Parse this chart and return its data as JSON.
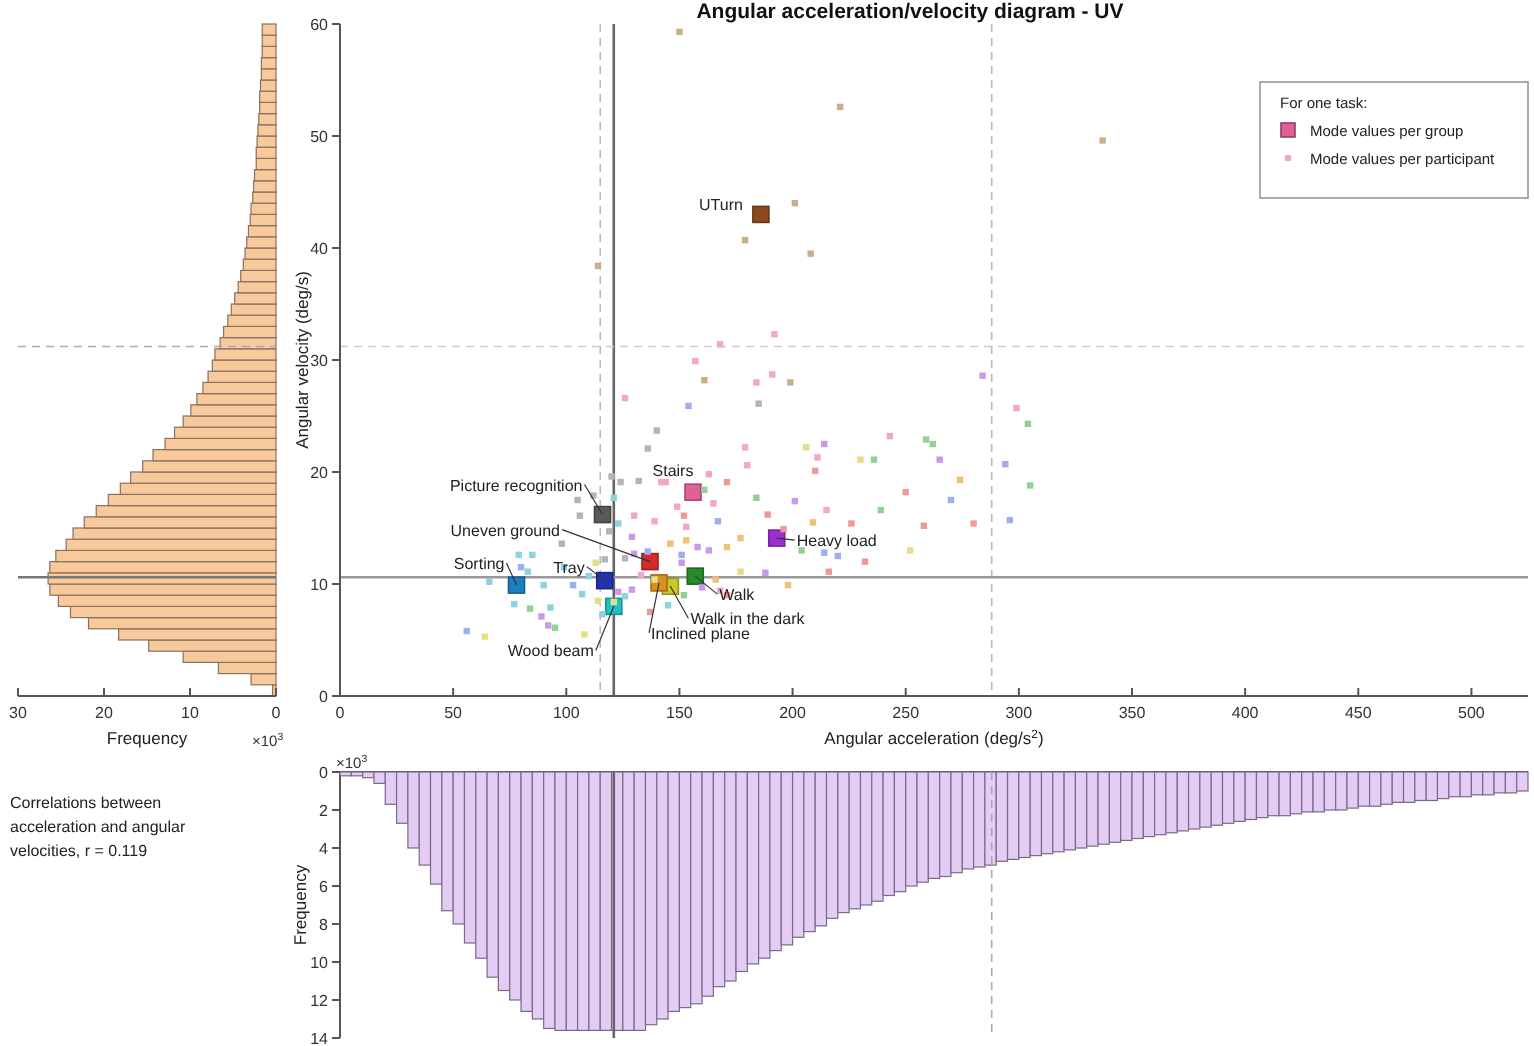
{
  "chart_data": [
    {
      "type": "histogram",
      "orientation": "horizontal",
      "xlabel": "Frequency",
      "annotations": [
        "×10$^{3}$",
        "Correlations between acceleration and angular velocities, r = 0.119"
      ],
      "color": "#f7c99b",
      "bins": [
        0,
        1,
        2,
        3,
        4,
        5,
        6,
        7,
        8,
        9,
        10,
        11,
        12,
        13,
        14,
        15,
        16,
        17,
        18,
        19,
        20,
        21,
        22,
        23,
        24,
        25,
        26,
        27,
        28,
        29,
        30,
        31,
        32,
        33,
        34,
        35,
        36,
        37,
        38,
        39,
        40,
        41,
        42,
        43,
        44,
        45,
        46,
        47,
        48,
        49,
        50,
        51,
        52,
        53,
        54,
        55,
        56,
        57,
        58,
        59,
        60
      ],
      "values": [
        0.4,
        2.9,
        6.7,
        10.8,
        14.8,
        18.3,
        21.8,
        23.9,
        25.3,
        26.3,
        26.5,
        26.3,
        25.6,
        24.4,
        23.6,
        22.3,
        20.9,
        19.5,
        18.1,
        16.9,
        15.5,
        14.3,
        12.9,
        11.8,
        10.8,
        9.9,
        9.2,
        8.5,
        7.9,
        7.4,
        7.1,
        6.5,
        6.1,
        5.6,
        5.2,
        4.8,
        4.4,
        4.1,
        3.8,
        3.6,
        3.4,
        3.2,
        3.0,
        2.9,
        2.7,
        2.6,
        2.5,
        2.3,
        2.3,
        2.2,
        2.1,
        2.0,
        1.9,
        1.9,
        1.8,
        1.7,
        1.7,
        1.6,
        1.6,
        1.6
      ],
      "xlim": [
        30,
        0
      ],
      "xticks": [
        30,
        20,
        10,
        0
      ],
      "ylim": [
        0,
        60
      ],
      "tick_labels": "x",
      "ref_lines": [
        {
          "axis": "y",
          "value": 10.6,
          "line_style": "solid",
          "color": "#777777"
        },
        {
          "axis": "y",
          "value": 31.2,
          "line_style": "dashed",
          "color": "#aaaaaa"
        }
      ]
    },
    {
      "type": "scatter",
      "title": "Angular acceleration/velocity diagram - UV",
      "xlabel": "Angular acceleration (deg/s$^{2}$)",
      "ylabel": "Angular velocity (deg/s)",
      "legend_title": "For one task:",
      "legend": "top right",
      "marker": "square",
      "xlim": [
        0,
        525
      ],
      "xticks": [
        0,
        50,
        100,
        150,
        200,
        250,
        300,
        350,
        400,
        450,
        500
      ],
      "ylim": [
        0,
        60
      ],
      "yticks": [
        0,
        10,
        20,
        30,
        40,
        50,
        60
      ],
      "series": [
        {
          "name": "Mode values per group",
          "color": "#e0609a",
          "x": [
            186,
            156,
            116,
            193,
            137,
            78,
            117,
            157,
            146,
            141,
            121
          ],
          "values": [
            43.0,
            18.2,
            16.2,
            14.1,
            12.0,
            9.9,
            10.3,
            10.7,
            9.8,
            10.1,
            8.0
          ],
          "colors": [
            "#8b4a1c",
            "#e0609a",
            "#5a5a5a",
            "#9b30d0",
            "#d42a2a",
            "#1a80c0",
            "#2233b0",
            "#2a8a2a",
            "#c8c828",
            "#d8901e",
            "#20c0c8"
          ]
        },
        {
          "name": "Mode values per participant",
          "color": "#f2a6c8",
          "x": [
            56,
            64,
            79,
            85,
            80,
            83,
            66,
            90,
            77,
            84,
            93,
            89,
            95,
            92,
            108,
            103,
            99,
            98,
            105,
            106,
            112,
            120,
            124,
            121,
            119,
            123,
            132,
            136,
            140,
            126,
            154,
            157,
            161,
            168,
            184,
            185,
            192,
            191,
            199,
            130,
            139,
            142,
            144,
            149,
            152,
            153,
            161,
            165,
            163,
            171,
            167,
            180,
            179,
            184,
            189,
            196,
            206,
            214,
            211,
            210,
            201,
            209,
            204,
            214,
            177,
            171,
            163,
            158,
            153,
            146,
            129,
            130,
            136,
            151,
            151,
            139,
            133,
            129,
            123,
            121,
            126,
            137,
            145,
            152,
            160,
            166,
            168,
            171,
            177,
            188,
            198,
            216,
            110,
            107,
            114,
            116,
            113,
            117,
            126,
            236,
            243,
            250,
            258,
            259,
            262,
            265,
            270,
            274,
            280,
            284,
            299,
            304,
            294,
            296,
            305,
            226,
            239,
            232,
            220,
            230,
            252,
            215,
            150,
            221,
            201,
            179,
            208,
            114,
            337
          ],
          "values": [
            5.8,
            5.3,
            12.6,
            12.6,
            11.5,
            11.1,
            10.2,
            9.9,
            8.2,
            7.8,
            7.9,
            7.1,
            6.1,
            6.3,
            5.5,
            9.9,
            11.5,
            13.6,
            17.5,
            16.1,
            17.9,
            19.6,
            19.1,
            17.7,
            14.7,
            15.4,
            19.2,
            22.1,
            23.7,
            26.6,
            25.9,
            29.9,
            28.2,
            31.4,
            28.0,
            26.1,
            32.3,
            28.7,
            28.0,
            16.1,
            15.6,
            19.1,
            19.1,
            16.9,
            16.1,
            15.1,
            18.4,
            17.2,
            19.8,
            19.1,
            15.6,
            20.6,
            22.2,
            17.7,
            16.2,
            14.9,
            22.2,
            22.5,
            21.3,
            20.1,
            17.4,
            15.5,
            13.0,
            12.8,
            14.1,
            13.3,
            13.0,
            13.3,
            13.9,
            13.6,
            14.2,
            12.7,
            12.9,
            12.6,
            11.9,
            10.4,
            10.8,
            9.5,
            9.3,
            8.4,
            8.9,
            7.5,
            8.1,
            9.0,
            9.7,
            10.4,
            9.4,
            9.0,
            11.1,
            11.0,
            9.9,
            11.1,
            10.7,
            9.1,
            8.5,
            7.3,
            11.9,
            12.2,
            12.3,
            21.1,
            23.2,
            18.2,
            15.2,
            22.9,
            22.5,
            21.1,
            17.5,
            19.3,
            15.4,
            28.6,
            25.7,
            24.3,
            20.7,
            15.7,
            18.8,
            15.4,
            16.6,
            12.0,
            12.5,
            21.1,
            13.0,
            16.6,
            59.3,
            52.6,
            44.0,
            40.7,
            39.5,
            38.4,
            49.6
          ],
          "colors": [
            "#a0aef0",
            "#e4de88",
            "#8dd3df",
            "#8dd3df",
            "#a0aef0",
            "#8dd3df",
            "#8dd3df",
            "#8dd3df",
            "#8dd3df",
            "#93d093",
            "#8dd3df",
            "#c89ae8",
            "#93d093",
            "#c89ae8",
            "#e4de88",
            "#a0aef0",
            "#8dd3df",
            "#b4b4b4",
            "#b4b4b4",
            "#b4b4b4",
            "#b4b4b4",
            "#b4b4b4",
            "#b4b4b4",
            "#8dd3df",
            "#b4b4b4",
            "#8dd3df",
            "#b4b4b4",
            "#b4b4b4",
            "#b4b4b4",
            "#f2a6c8",
            "#a0aef0",
            "#f2a6c8",
            "#c9ae8a",
            "#f2a6c8",
            "#f2a6c8",
            "#b4b4b4",
            "#f2a6c8",
            "#f2a6c8",
            "#c9ae8a",
            "#f2a6c8",
            "#f2a6c8",
            "#f2a6c8",
            "#f2a6c8",
            "#f2a6c8",
            "#ee9a9a",
            "#f2a6c8",
            "#93d093",
            "#f2a6c8",
            "#f2a6c8",
            "#ee9a9a",
            "#a0aef0",
            "#f2a6c8",
            "#f2a6c8",
            "#93d093",
            "#ee9a9a",
            "#ee9a9a",
            "#e4de88",
            "#c89ae8",
            "#f2a6c8",
            "#ee9a9a",
            "#c89ae8",
            "#f0c078",
            "#93d093",
            "#a0aef0",
            "#f0c078",
            "#f0c078",
            "#c89ae8",
            "#c89ae8",
            "#f0c078",
            "#f0c078",
            "#c89ae8",
            "#c89ae8",
            "#a0aef0",
            "#a0aef0",
            "#c89ae8",
            "#e4de88",
            "#f2a6c8",
            "#c89ae8",
            "#c89ae8",
            "#e4de88",
            "#8dd3df",
            "#ee9a9a",
            "#8dd3df",
            "#93d093",
            "#c89ae8",
            "#f0c078",
            "#f2a6c8",
            "#ee9a9a",
            "#e4de88",
            "#c89ae8",
            "#f0c078",
            "#ee9a9a",
            "#8dd3df",
            "#8dd3df",
            "#e4de88",
            "#8dd3df",
            "#e4de88",
            "#b4b4b4",
            "#b4b4b4",
            "#93d093",
            "#f2a6c8",
            "#ee9a9a",
            "#ee9a9a",
            "#93d093",
            "#93d093",
            "#c89ae8",
            "#a0aef0",
            "#f0c078",
            "#ee9a9a",
            "#c89ae8",
            "#f2a6c8",
            "#93d093",
            "#a0aef0",
            "#a0aef0",
            "#93d093",
            "#ee9a9a",
            "#93d093",
            "#ee9a9a",
            "#a0aef0",
            "#e4de88",
            "#e4de88",
            "#f2a6c8",
            "#c9ae8a",
            "#c9ae8a",
            "#c9ae8a",
            "#c9ae8a",
            "#c9ae8a",
            "#c9ae8a",
            "#c9ae8a"
          ]
        }
      ],
      "annotations": [
        {
          "text": "UTurn",
          "x": 186,
          "y": 43.0
        },
        {
          "text": "Stairs",
          "x": 156,
          "y": 18.2
        },
        {
          "text": "Picture recognition",
          "x": 116,
          "y": 16.2
        },
        {
          "text": "Heavy load",
          "x": 193,
          "y": 14.1
        },
        {
          "text": "Uneven ground",
          "x": 137,
          "y": 12.0
        },
        {
          "text": "Sorting",
          "x": 78,
          "y": 9.9
        },
        {
          "text": "Tray",
          "x": 117,
          "y": 10.3
        },
        {
          "text": "Walk",
          "x": 157,
          "y": 10.7
        },
        {
          "text": "Walk in the dark",
          "x": 146,
          "y": 9.8
        },
        {
          "text": "Inclined plane",
          "x": 141,
          "y": 10.1
        },
        {
          "text": "Wood beam",
          "x": 121,
          "y": 8.0
        }
      ],
      "ref_lines": [
        {
          "axis": "x",
          "value": 121,
          "line_style": "solid",
          "color": "#666666"
        },
        {
          "axis": "x",
          "value": 115,
          "line_style": "dashed",
          "color": "#bbbbbb"
        },
        {
          "axis": "x",
          "value": 288,
          "line_style": "dashed",
          "color": "#bbbbbb"
        },
        {
          "axis": "y",
          "value": 10.6,
          "line_style": "solid",
          "color": "#999999"
        },
        {
          "axis": "y",
          "value": 31.2,
          "line_style": "dashed",
          "color": "#cccccc"
        }
      ]
    },
    {
      "type": "histogram",
      "ylabel": "Frequency",
      "annotations": [
        "×10$^{3}$"
      ],
      "color": "#e3cdf5",
      "bins": [
        0,
        5,
        10,
        15,
        20,
        25,
        30,
        35,
        40,
        45,
        50,
        55,
        60,
        65,
        70,
        75,
        80,
        85,
        90,
        95,
        100,
        105,
        110,
        115,
        120,
        125,
        130,
        135,
        140,
        145,
        150,
        155,
        160,
        165,
        170,
        175,
        180,
        185,
        190,
        195,
        200,
        205,
        210,
        215,
        220,
        225,
        230,
        235,
        240,
        245,
        250,
        255,
        260,
        265,
        270,
        275,
        280,
        285,
        290,
        295,
        300,
        305,
        310,
        315,
        320,
        325,
        330,
        335,
        340,
        345,
        350,
        355,
        360,
        365,
        370,
        375,
        380,
        385,
        390,
        395,
        400,
        405,
        410,
        415,
        420,
        425,
        430,
        435,
        440,
        445,
        450,
        455,
        460,
        465,
        470,
        475,
        480,
        485,
        490,
        495,
        500,
        505,
        510,
        515,
        520,
        525
      ],
      "values": [
        0.2,
        0.2,
        0.3,
        0.6,
        1.7,
        2.7,
        4.0,
        4.9,
        5.9,
        7.3,
        8.0,
        9.0,
        9.8,
        10.8,
        11.5,
        12.0,
        12.6,
        13.0,
        13.5,
        13.6,
        13.6,
        13.6,
        13.6,
        13.6,
        13.6,
        13.6,
        13.6,
        13.3,
        13.0,
        12.6,
        12.4,
        12.2,
        11.8,
        11.3,
        11.0,
        10.5,
        10.1,
        9.8,
        9.4,
        9.1,
        8.7,
        8.4,
        8.1,
        7.7,
        7.4,
        7.2,
        7.0,
        6.8,
        6.5,
        6.3,
        6.0,
        5.8,
        5.6,
        5.5,
        5.3,
        5.1,
        5.0,
        4.9,
        4.7,
        4.6,
        4.5,
        4.4,
        4.3,
        4.2,
        4.1,
        4.0,
        3.9,
        3.8,
        3.7,
        3.6,
        3.5,
        3.4,
        3.3,
        3.2,
        3.1,
        3.0,
        2.9,
        2.8,
        2.7,
        2.6,
        2.5,
        2.4,
        2.3,
        2.3,
        2.2,
        2.1,
        2.1,
        2.0,
        2.0,
        1.9,
        1.8,
        1.8,
        1.7,
        1.6,
        1.6,
        1.5,
        1.5,
        1.4,
        1.3,
        1.3,
        1.2,
        1.2,
        1.1,
        1.1,
        1.0
      ],
      "xlim": [
        0,
        525
      ],
      "ylim": [
        14,
        0
      ],
      "yticks": [
        0,
        2,
        4,
        6,
        8,
        10,
        12,
        14
      ],
      "tick_labels": "y",
      "ref_lines": [
        {
          "axis": "x",
          "value": 121,
          "line_style": "solid",
          "color": "#666666"
        },
        {
          "axis": "x",
          "value": 288,
          "line_style": "dashed",
          "color": "#aaaaaa"
        }
      ]
    }
  ]
}
